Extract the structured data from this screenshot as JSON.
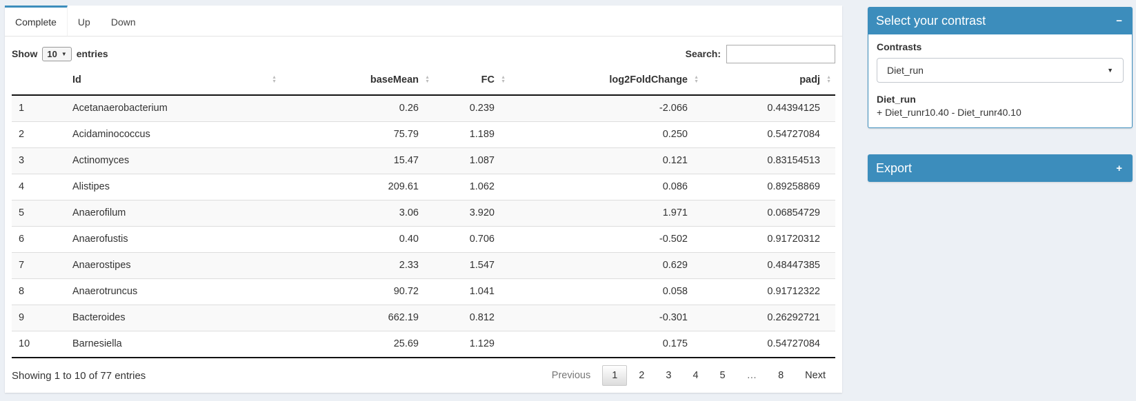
{
  "colors": {
    "primary": "#3c8dbc",
    "page_bg": "#ecf0f5",
    "stripe": "#f9f9f9"
  },
  "tabs": [
    {
      "label": "Complete",
      "active": true
    },
    {
      "label": "Up",
      "active": false
    },
    {
      "label": "Down",
      "active": false
    }
  ],
  "controls": {
    "show_label": "Show",
    "page_size": "10",
    "entries_label": "entries",
    "search_label": "Search:",
    "search_value": ""
  },
  "table": {
    "columns": [
      {
        "label": "",
        "sortable": false,
        "align": "left"
      },
      {
        "label": "Id",
        "sortable": true,
        "align": "left"
      },
      {
        "label": "baseMean",
        "sortable": true,
        "align": "right"
      },
      {
        "label": "FC",
        "sortable": true,
        "align": "right"
      },
      {
        "label": "log2FoldChange",
        "sortable": true,
        "align": "right"
      },
      {
        "label": "padj",
        "sortable": true,
        "align": "right"
      }
    ],
    "rows": [
      [
        "1",
        "Acetanaerobacterium",
        "0.26",
        "0.239",
        "-2.066",
        "0.44394125"
      ],
      [
        "2",
        "Acidaminococcus",
        "75.79",
        "1.189",
        "0.250",
        "0.54727084"
      ],
      [
        "3",
        "Actinomyces",
        "15.47",
        "1.087",
        "0.121",
        "0.83154513"
      ],
      [
        "4",
        "Alistipes",
        "209.61",
        "1.062",
        "0.086",
        "0.89258869"
      ],
      [
        "5",
        "Anaerofilum",
        "3.06",
        "3.920",
        "1.971",
        "0.06854729"
      ],
      [
        "6",
        "Anaerofustis",
        "0.40",
        "0.706",
        "-0.502",
        "0.91720312"
      ],
      [
        "7",
        "Anaerostipes",
        "2.33",
        "1.547",
        "0.629",
        "0.48447385"
      ],
      [
        "8",
        "Anaerotruncus",
        "90.72",
        "1.041",
        "0.058",
        "0.91712322"
      ],
      [
        "9",
        "Bacteroides",
        "662.19",
        "0.812",
        "-0.301",
        "0.26292721"
      ],
      [
        "10",
        "Barnesiella",
        "25.69",
        "1.129",
        "0.175",
        "0.54727084"
      ]
    ]
  },
  "footer": {
    "info": "Showing 1 to 10 of 77 entries",
    "pagination": {
      "previous": "Previous",
      "pages": [
        "1",
        "2",
        "3",
        "4",
        "5",
        "…",
        "8"
      ],
      "current": "1",
      "next": "Next"
    }
  },
  "contrast_box": {
    "title": "Select your contrast",
    "collapse_icon": "−",
    "label": "Contrasts",
    "selected": "Diet_run",
    "detail_title": "Diet_run",
    "detail_text": "+ Diet_runr10.40 - Diet_runr40.10"
  },
  "export_box": {
    "title": "Export",
    "expand_icon": "+"
  }
}
